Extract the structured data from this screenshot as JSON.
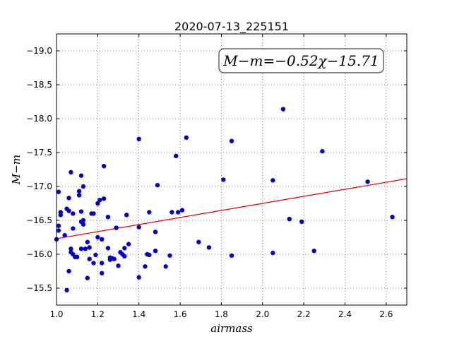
{
  "chart_data": {
    "type": "scatter",
    "title": "2020-07-13_225151",
    "xlabel": "airmass",
    "ylabel": "M−m",
    "xlim": [
      1.0,
      2.7
    ],
    "ylim": [
      -19.25,
      -15.25
    ],
    "y_inverted": true,
    "grid": true,
    "x_ticks": [
      1.0,
      1.2,
      1.4,
      1.6,
      1.8,
      2.0,
      2.2,
      2.4,
      2.6
    ],
    "x_tick_labels": [
      "1.0",
      "1.2",
      "1.4",
      "1.6",
      "1.8",
      "2.0",
      "2.2",
      "2.4",
      "2.6"
    ],
    "y_ticks": [
      -15.5,
      -16.0,
      -16.5,
      -17.0,
      -17.5,
      -18.0,
      -18.5,
      -19.0
    ],
    "y_tick_labels": [
      "−15.5",
      "−16.0",
      "−16.5",
      "−17.0",
      "−17.5",
      "−18.0",
      "−18.5",
      "−19.0"
    ],
    "annotation": "M−m=−0.52χ−15.71",
    "point_color": "#0000cc",
    "fit_color": "#dd0000",
    "fit": {
      "slope": -0.52,
      "intercept": -15.71
    },
    "series": [
      {
        "points": [
          [
            1.0,
            -16.22
          ],
          [
            1.01,
            -16.42
          ],
          [
            1.01,
            -16.35
          ],
          [
            1.01,
            -16.92
          ],
          [
            1.02,
            -16.58
          ],
          [
            1.02,
            -16.62
          ],
          [
            1.04,
            -16.28
          ],
          [
            1.05,
            -15.47
          ],
          [
            1.05,
            -16.67
          ],
          [
            1.06,
            -16.64
          ],
          [
            1.06,
            -16.83
          ],
          [
            1.06,
            -15.75
          ],
          [
            1.07,
            -16.03
          ],
          [
            1.07,
            -16.08
          ],
          [
            1.07,
            -17.21
          ],
          [
            1.08,
            -16.38
          ],
          [
            1.08,
            -16.6
          ],
          [
            1.08,
            -16.0
          ],
          [
            1.09,
            -15.96
          ],
          [
            1.1,
            -15.96
          ],
          [
            1.11,
            -16.87
          ],
          [
            1.11,
            -16.93
          ],
          [
            1.12,
            -16.08
          ],
          [
            1.12,
            -16.63
          ],
          [
            1.12,
            -16.48
          ],
          [
            1.12,
            -17.16
          ],
          [
            1.13,
            -16.44
          ],
          [
            1.13,
            -16.5
          ],
          [
            1.13,
            -17.0
          ],
          [
            1.14,
            -16.08
          ],
          [
            1.15,
            -15.65
          ],
          [
            1.15,
            -16.18
          ],
          [
            1.16,
            -16.1
          ],
          [
            1.16,
            -15.93
          ],
          [
            1.17,
            -16.6
          ],
          [
            1.18,
            -16.6
          ],
          [
            1.18,
            -15.87
          ],
          [
            1.19,
            -15.99
          ],
          [
            1.2,
            -16.25
          ],
          [
            1.2,
            -16.75
          ],
          [
            1.21,
            -16.8
          ],
          [
            1.22,
            -15.87
          ],
          [
            1.22,
            -16.22
          ],
          [
            1.22,
            -15.72
          ],
          [
            1.23,
            -16.82
          ],
          [
            1.23,
            -17.3
          ],
          [
            1.25,
            -16.55
          ],
          [
            1.25,
            -16.09
          ],
          [
            1.26,
            -15.92
          ],
          [
            1.26,
            -15.95
          ],
          [
            1.27,
            -15.94
          ],
          [
            1.28,
            -15.93
          ],
          [
            1.29,
            -16.39
          ],
          [
            1.3,
            -15.83
          ],
          [
            1.31,
            -16.03
          ],
          [
            1.32,
            -16.0
          ],
          [
            1.33,
            -15.97
          ],
          [
            1.33,
            -16.09
          ],
          [
            1.34,
            -16.58
          ],
          [
            1.35,
            -16.15
          ],
          [
            1.4,
            -16.4
          ],
          [
            1.4,
            -15.66
          ],
          [
            1.4,
            -17.7
          ],
          [
            1.43,
            -15.82
          ],
          [
            1.44,
            -16.0
          ],
          [
            1.45,
            -16.62
          ],
          [
            1.45,
            -15.99
          ],
          [
            1.48,
            -16.33
          ],
          [
            1.48,
            -16.05
          ],
          [
            1.49,
            -17.02
          ],
          [
            1.53,
            -15.82
          ],
          [
            1.55,
            -15.98
          ],
          [
            1.56,
            -16.62
          ],
          [
            1.58,
            -17.45
          ],
          [
            1.59,
            -16.62
          ],
          [
            1.61,
            -16.65
          ],
          [
            1.63,
            -17.72
          ],
          [
            1.69,
            -16.18
          ],
          [
            1.74,
            -16.1
          ],
          [
            1.81,
            -17.1
          ],
          [
            1.85,
            -15.98
          ],
          [
            1.85,
            -17.67
          ],
          [
            2.05,
            -16.02
          ],
          [
            2.05,
            -17.09
          ],
          [
            2.1,
            -18.14
          ],
          [
            2.13,
            -16.52
          ],
          [
            2.19,
            -16.48
          ],
          [
            2.25,
            -16.05
          ],
          [
            2.29,
            -17.52
          ],
          [
            2.51,
            -17.07
          ],
          [
            2.63,
            -16.55
          ]
        ]
      }
    ]
  }
}
